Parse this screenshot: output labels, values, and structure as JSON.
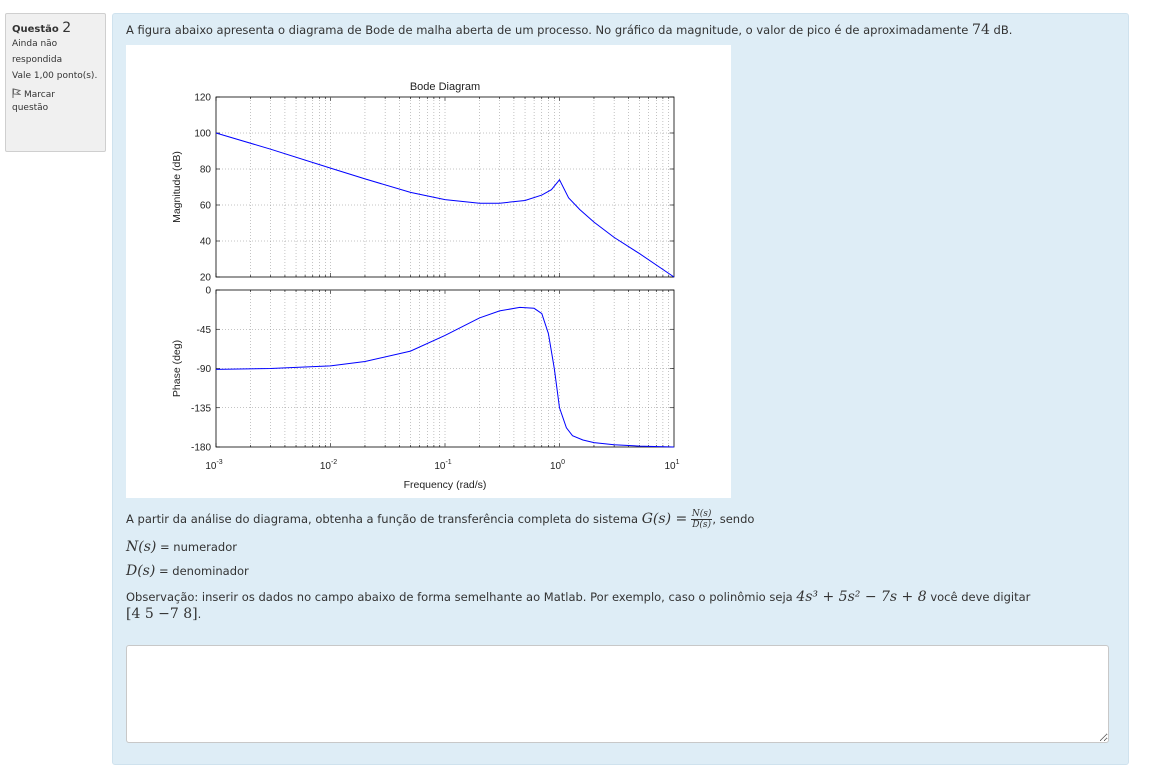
{
  "info": {
    "question_label": "Questão",
    "question_number": "2",
    "status_line1": "Ainda não",
    "status_line2": "respondida",
    "points": "Vale 1,00 ponto(s).",
    "flag_line1": "Marcar",
    "flag_line2": "questão"
  },
  "question": {
    "intro": "A figura abaixo apresenta o diagrama de Bode de malha aberta de um processo. No gráfico da magnitude, o valor de pico é de aproximadamente",
    "peak_value": "74",
    "peak_unit": "dB.",
    "analysis": "A partir da análise do diagrama, obtenha a função de transferência completa do sistema",
    "G_lhs": "G(s) =",
    "G_num": "N(s)",
    "G_den": "D(s)",
    "sendo": ", sendo",
    "N_def": "N(s)",
    "N_eq": " = numerador",
    "D_def": "D(s)",
    "D_eq": " = denominador",
    "obs": "Observação: inserir os dados no campo abaixo de forma semelhante ao Matlab. Por exemplo, caso o polinômio seja",
    "poly_example": "4s³ + 5s² − 7s + 8",
    "obs_end": "você deve digitar",
    "matlab_example": "[4  5  −7  8]",
    "matlab_end": "."
  },
  "answer": {
    "value": ""
  },
  "chart_data": [
    {
      "type": "line",
      "title": "Bode Diagram",
      "xlabel": "",
      "ylabel": "Magnitude (dB)",
      "x_scale": "log",
      "xlim": [
        0.001,
        10
      ],
      "ylim": [
        20,
        120
      ],
      "yticks": [
        "120",
        "100",
        "80",
        "60",
        "40",
        "20"
      ],
      "grid": true,
      "color": "#0000ff",
      "x": [
        0.001,
        0.003,
        0.01,
        0.02,
        0.05,
        0.1,
        0.2,
        0.3,
        0.5,
        0.7,
        0.85,
        1.0,
        1.2,
        1.5,
        2,
        3,
        5,
        10
      ],
      "y": [
        100,
        91,
        80.5,
        74.5,
        67,
        63,
        61,
        61,
        62.5,
        65.5,
        68.5,
        74,
        64,
        57.5,
        50.5,
        42,
        33,
        20
      ]
    },
    {
      "type": "line",
      "xlabel": "Frequency  (rad/s)",
      "ylabel": "Phase (deg)",
      "x_scale": "log",
      "xlim": [
        0.001,
        10
      ],
      "ylim": [
        -180,
        0
      ],
      "yticks": [
        "0",
        "-45",
        "-90",
        "-135",
        "-180"
      ],
      "xticks": [
        "10",
        "10",
        "10",
        "10",
        "10"
      ],
      "xtick_exponents": [
        "-3",
        "-2",
        "-1",
        "0",
        "1"
      ],
      "grid": true,
      "color": "#0000ff",
      "x": [
        0.001,
        0.003,
        0.01,
        0.02,
        0.05,
        0.1,
        0.2,
        0.3,
        0.45,
        0.6,
        0.7,
        0.8,
        0.9,
        1.0,
        1.15,
        1.3,
        1.6,
        2,
        3,
        5,
        10
      ],
      "y": [
        -91,
        -90,
        -87,
        -82,
        -70,
        -52,
        -32,
        -24,
        -20,
        -21,
        -27,
        -50,
        -90,
        -135,
        -158,
        -167,
        -172,
        -175,
        -177.5,
        -179,
        -180
      ]
    }
  ]
}
